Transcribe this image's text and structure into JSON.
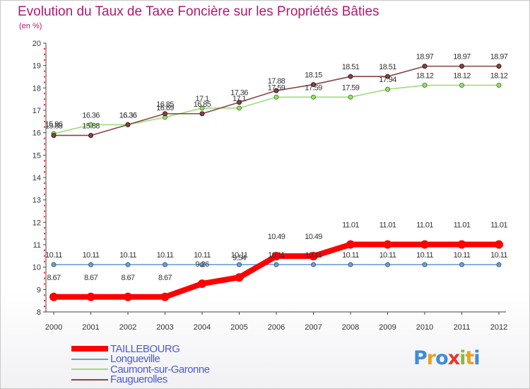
{
  "title": "Evolution du Taux de Taxe Foncière sur les Propriétés Bâties",
  "unit_label": "(en %)",
  "logo": {
    "letters": [
      "P",
      "r",
      "o",
      "x",
      "i",
      "t",
      "i"
    ],
    "colors": [
      "#3c8dd8",
      "#e8a21c",
      "#3c8dd8",
      "#e8382a",
      "#7cbf3a",
      "#e8a21c",
      "#3c8dd8"
    ]
  },
  "chart_data": {
    "type": "line",
    "title": "Evolution du Taux de Taxe Foncière sur les Propriétés Bâties",
    "ylabel": "(en %)",
    "xlabel": "",
    "x": [
      "2000",
      "2001",
      "2002",
      "2003",
      "2004",
      "2005",
      "2006",
      "2007",
      "2008",
      "2009",
      "2010",
      "2011",
      "2012"
    ],
    "yticks": [
      "8",
      "9",
      "10",
      "11",
      "12",
      "13",
      "14",
      "15",
      "16",
      "17",
      "18",
      "19",
      "20"
    ],
    "ylim": [
      8,
      20
    ],
    "grid": false,
    "legend_position": "bottom-left",
    "series": [
      {
        "name": "TAILLEBOURG",
        "color": "#ff0000",
        "values": [
          8.67,
          8.67,
          8.67,
          8.67,
          9.26,
          9.54,
          10.49,
          10.49,
          11.01,
          11.01,
          11.01,
          11.01,
          11.01
        ],
        "labels": [
          "8.67",
          "8.67",
          "8.67",
          "8.67",
          "9.26",
          "9.54",
          "10.49",
          "10.49",
          "11.01",
          "11.01",
          "11.01",
          "11.01",
          "11.01"
        ]
      },
      {
        "name": "Longueville",
        "color": "#6e9fd0",
        "values": [
          10.11,
          10.11,
          10.11,
          10.11,
          10.11,
          10.11,
          10.11,
          10.11,
          10.11,
          10.11,
          10.11,
          10.11,
          10.11
        ],
        "labels": [
          "10.11",
          "10.11",
          "10.11",
          "10.11",
          "10.11",
          "10.11",
          "10.11",
          "10.11",
          "10.11",
          "10.11",
          "10.11",
          "10.11",
          "10.11"
        ]
      },
      {
        "name": "Caumont-sur-Garonne",
        "color": "#9edc7a",
        "values": [
          15.96,
          16.36,
          16.36,
          16.69,
          17.1,
          17.1,
          17.59,
          17.59,
          17.59,
          17.94,
          18.12,
          18.12,
          18.12
        ],
        "labels": [
          "15.96",
          "16.36",
          "16.36",
          "16.69",
          "17.1",
          "17.1",
          "17.59",
          "17.59",
          "17.59",
          "17.94",
          "18.12",
          "18.12",
          "18.12"
        ]
      },
      {
        "name": "Fauguerolles",
        "color": "#8a4444",
        "values": [
          15.88,
          15.88,
          16.36,
          16.85,
          16.85,
          17.36,
          17.88,
          18.15,
          18.51,
          18.51,
          18.97,
          18.97,
          18.97
        ],
        "labels": [
          "15.88",
          "15.88",
          "16.36",
          "16.85",
          "16.85",
          "17.36",
          "17.88",
          "18.15",
          "18.51",
          "18.51",
          "18.97",
          "18.97",
          "18.97"
        ]
      }
    ]
  }
}
